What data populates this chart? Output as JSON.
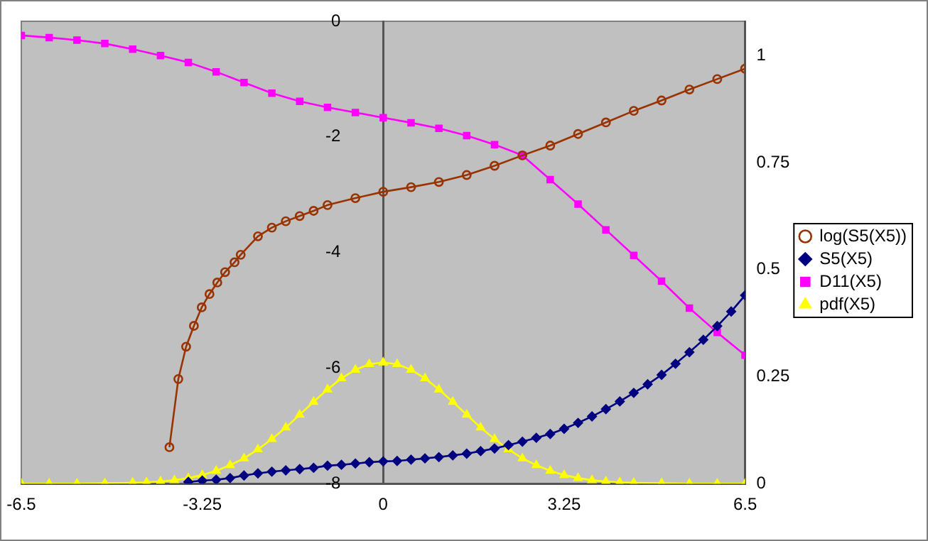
{
  "chart_data": {
    "type": "line",
    "xlim": [
      -6.5,
      6.5
    ],
    "xticks": [
      -6.5,
      -3.25,
      0,
      3.25,
      6.5
    ],
    "ylim": [
      -8,
      0
    ],
    "yticks": [
      -8,
      -6,
      -4,
      -2,
      0
    ],
    "y2lim": [
      0,
      1.08
    ],
    "y2ticks": [
      0,
      0.25,
      0.5,
      0.75,
      1
    ],
    "grid": false,
    "legend": "right",
    "line_style": "solid",
    "series": [
      {
        "name": "log(S5(X5))",
        "color": "#993300",
        "marker": "circle",
        "axis": "y",
        "x": [
          -3.84,
          -3.68,
          -3.54,
          -3.4,
          -3.26,
          -3.12,
          -2.98,
          -2.84,
          -2.67,
          -2.56,
          -2.25,
          -2,
          -1.75,
          -1.5,
          -1.25,
          -1,
          -0.5,
          0,
          0.5,
          1,
          1.5,
          2,
          2.5,
          3,
          3.5,
          4,
          4.5,
          5,
          5.5,
          6,
          6.5
        ],
        "values": [
          -7.37,
          -6.19,
          -5.63,
          -5.27,
          -4.95,
          -4.72,
          -4.52,
          -4.34,
          -4.17,
          -4.04,
          -3.72,
          -3.57,
          -3.46,
          -3.37,
          -3.28,
          -3.18,
          -3.06,
          -2.95,
          -2.87,
          -2.78,
          -2.66,
          -2.5,
          -2.32,
          -2.15,
          -1.95,
          -1.75,
          -1.55,
          -1.37,
          -1.18,
          -1.0,
          -0.82
        ]
      },
      {
        "name": "S5(X5)",
        "color": "#000080",
        "marker": "diamond",
        "axis": "y2",
        "x": [
          -3.5,
          -3.25,
          -3,
          -2.75,
          -2.5,
          -2.25,
          -2,
          -1.75,
          -1.5,
          -1.25,
          -1,
          -0.75,
          -0.5,
          -0.25,
          0,
          0.25,
          0.5,
          0.75,
          1,
          1.25,
          1.5,
          1.75,
          2,
          2.25,
          2.5,
          2.75,
          3,
          3.25,
          3.5,
          3.75,
          4,
          4.25,
          4.5,
          4.75,
          5,
          5.25,
          5.5,
          5.75,
          6,
          6.25,
          6.5
        ],
        "values": [
          0.004,
          0.007,
          0.009,
          0.013,
          0.019,
          0.024,
          0.028,
          0.031,
          0.034,
          0.037,
          0.042,
          0.044,
          0.047,
          0.05,
          0.052,
          0.053,
          0.056,
          0.059,
          0.062,
          0.066,
          0.07,
          0.076,
          0.082,
          0.09,
          0.098,
          0.107,
          0.116,
          0.128,
          0.142,
          0.157,
          0.174,
          0.192,
          0.212,
          0.232,
          0.254,
          0.28,
          0.307,
          0.336,
          0.368,
          0.402,
          0.44
        ]
      },
      {
        "name": "D11(X5)",
        "color": "#ff00ff",
        "marker": "square",
        "axis": "y2",
        "x": [
          -6.5,
          -6,
          -5.5,
          -5,
          -4.5,
          -4,
          -3.5,
          -3,
          -2.5,
          -2,
          -1.5,
          -1,
          -0.5,
          0,
          0.5,
          1,
          1.5,
          2,
          2.5,
          3,
          3.5,
          4,
          4.5,
          5,
          5.5,
          6,
          6.5
        ],
        "values": [
          1.047,
          1.042,
          1.036,
          1.028,
          1.015,
          1.0,
          0.984,
          0.962,
          0.937,
          0.912,
          0.893,
          0.879,
          0.867,
          0.855,
          0.843,
          0.83,
          0.813,
          0.792,
          0.767,
          0.71,
          0.653,
          0.593,
          0.533,
          0.473,
          0.41,
          0.353,
          0.3
        ]
      },
      {
        "name": "pdf(X5)",
        "color": "#ffff00",
        "marker": "triangle",
        "axis": "y2",
        "x": [
          -6.5,
          -6,
          -5.5,
          -5,
          -4.5,
          -4.25,
          -4,
          -3.75,
          -3.5,
          -3.25,
          -3,
          -2.75,
          -2.5,
          -2.25,
          -2,
          -1.75,
          -1.5,
          -1.25,
          -1,
          -0.75,
          -0.5,
          -0.25,
          0,
          0.25,
          0.5,
          0.75,
          1,
          1.25,
          1.5,
          1.75,
          2,
          2.25,
          2.5,
          2.75,
          3,
          3.25,
          3.5,
          3.75,
          4,
          4.25,
          4.5,
          5,
          5.5,
          6,
          6.5
        ],
        "values": [
          0,
          0,
          0,
          0.001,
          0.002,
          0.003,
          0.005,
          0.008,
          0.013,
          0.02,
          0.03,
          0.043,
          0.059,
          0.08,
          0.104,
          0.131,
          0.161,
          0.191,
          0.22,
          0.246,
          0.266,
          0.279,
          0.283,
          0.279,
          0.266,
          0.246,
          0.22,
          0.191,
          0.161,
          0.131,
          0.104,
          0.08,
          0.059,
          0.043,
          0.03,
          0.02,
          0.013,
          0.008,
          0.005,
          0.003,
          0.002,
          0.001,
          0,
          0,
          0
        ]
      }
    ]
  }
}
